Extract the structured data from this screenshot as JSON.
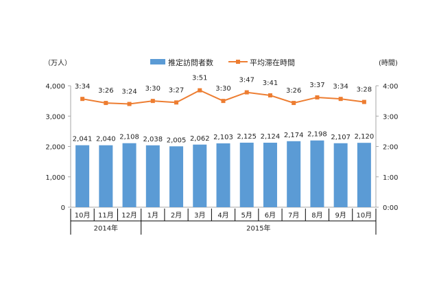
{
  "chart_data": {
    "type": "bar+line",
    "categories": [
      "10月",
      "11月",
      "12月",
      "1月",
      "2月",
      "3月",
      "4月",
      "5月",
      "6月",
      "7月",
      "8月",
      "9月",
      "10月"
    ],
    "year_groups": [
      {
        "label": "2014年",
        "span": 3
      },
      {
        "label": "2015年",
        "span": 10
      }
    ],
    "left_axis": {
      "unit_label": "（万人）",
      "ylim": [
        0,
        4000
      ],
      "ticks": [
        "0",
        "1,000",
        "2,000",
        "3,000",
        "4,000"
      ]
    },
    "right_axis": {
      "unit_label": "(時間)",
      "ylim_minutes": [
        0,
        240
      ],
      "ticks": [
        "0:00",
        "1:00",
        "2:00",
        "3:00",
        "4:00"
      ]
    },
    "series": [
      {
        "name": "推定訪問者数",
        "type": "bar",
        "color": "#5b9bd5",
        "values": [
          2041,
          2040,
          2108,
          2038,
          2005,
          2062,
          2103,
          2125,
          2124,
          2174,
          2198,
          2107,
          2120
        ],
        "labels": [
          "2,041",
          "2,040",
          "2,108",
          "2,038",
          "2,005",
          "2,062",
          "2,103",
          "2,125",
          "2,124",
          "2,174",
          "2,198",
          "2,107",
          "2,120"
        ]
      },
      {
        "name": "平均滞在時間",
        "type": "line",
        "color": "#ed7d31",
        "axis": "right",
        "values": [
          "3:34",
          "3:26",
          "3:24",
          "3:30",
          "3:27",
          "3:51",
          "3:30",
          "3:47",
          "3:41",
          "3:26",
          "3:37",
          "3:34",
          "3:28"
        ]
      }
    ],
    "legend": "top",
    "grid": false
  }
}
